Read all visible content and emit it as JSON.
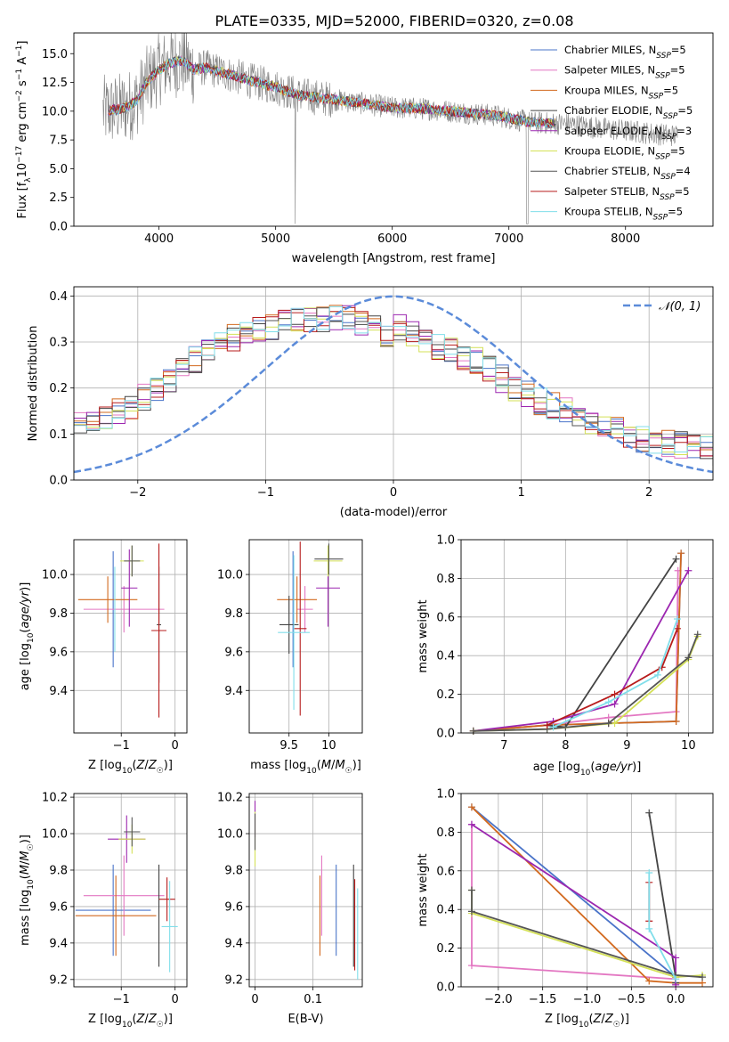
{
  "figure": {
    "title": "PLATE=0335, MJD=52000, FIBERID=0320, z=0.08"
  },
  "chart_data": [
    {
      "id": "spectrum",
      "type": "line",
      "title": "PLATE=0335, MJD=52000, FIBERID=0320, z=0.08",
      "xlabel": "wavelength [Angstrom, rest frame]",
      "ylabel": "Flux [f_λ 10^-17 erg cm^-2 s^-1 A^-1]",
      "xlim": [
        3270,
        8750
      ],
      "ylim": [
        0,
        16.8
      ],
      "xticks": [
        4000,
        5000,
        6000,
        7000,
        8000
      ],
      "yticks": [
        0.0,
        2.5,
        5.0,
        7.5,
        10.0,
        12.5,
        15.0
      ],
      "grid": false,
      "legend_position": "top-right",
      "data_color": "#808080",
      "continuum_x": [
        3550,
        3700,
        3800,
        3900,
        4000,
        4100,
        4200,
        4300,
        4400,
        4600,
        4800,
        5000,
        5200,
        5500,
        5800,
        6000,
        6300,
        6600,
        6900,
        7200,
        7500,
        7800,
        8100,
        8400
      ],
      "continuum_y": [
        10.0,
        10.3,
        10.8,
        12.6,
        13.6,
        14.2,
        14.4,
        13.6,
        13.8,
        13.2,
        12.6,
        12.1,
        11.4,
        11.0,
        10.6,
        10.3,
        10.2,
        9.9,
        9.6,
        9.0,
        8.9,
        8.5,
        8.2,
        7.9
      ],
      "series": [
        {
          "name": "Chabrier MILES, N_SSP=5",
          "color": "#4a74c9"
        },
        {
          "name": "Salpeter MILES, N_SSP=5",
          "color": "#e377c2"
        },
        {
          "name": "Kroupa MILES, N_SSP=5",
          "color": "#d2691e"
        },
        {
          "name": "Chabrier ELODIE, N_SSP=5",
          "color": "#444444"
        },
        {
          "name": "Salpeter ELODIE, N_SSP=3",
          "color": "#9c27b0"
        },
        {
          "name": "Kroupa ELODIE, N_SSP=5",
          "color": "#d4e157"
        },
        {
          "name": "Chabrier STELIB, N_SSP=4",
          "color": "#555555"
        },
        {
          "name": "Salpeter STELIB, N_SSP=5",
          "color": "#b71c1c"
        },
        {
          "name": "Kroupa STELIB, N_SSP=5",
          "color": "#80deea"
        }
      ]
    },
    {
      "id": "residuals",
      "type": "line",
      "xlabel": "(data-model)/error",
      "ylabel": "Normed distribution",
      "xlim": [
        -2.5,
        2.5
      ],
      "ylim": [
        0,
        0.42
      ],
      "xticks": [
        -2,
        -1,
        0,
        1,
        2
      ],
      "yticks": [
        0.0,
        0.1,
        0.2,
        0.3,
        0.4
      ],
      "grid": true,
      "legend_position": "top-right",
      "legend_label": "𝒩(0, 1)",
      "gaussian_color": "#5b8bd9",
      "bin_width": 0.1,
      "hist_base": [
        0.04,
        0.045,
        0.05,
        0.05,
        0.055,
        0.06,
        0.065,
        0.07,
        0.08,
        0.085,
        0.09,
        0.095,
        0.1,
        0.11,
        0.12,
        0.125,
        0.13,
        0.14,
        0.15,
        0.16,
        0.18,
        0.2,
        0.22,
        0.24,
        0.26,
        0.28,
        0.29,
        0.31,
        0.32,
        0.33,
        0.335,
        0.34,
        0.345,
        0.35,
        0.35,
        0.355,
        0.35,
        0.34,
        0.33,
        0.32,
        0.33,
        0.32,
        0.3,
        0.29,
        0.28,
        0.27,
        0.26,
        0.24,
        0.22,
        0.2,
        0.185,
        0.17,
        0.16,
        0.15,
        0.14,
        0.13,
        0.12,
        0.11,
        0.1,
        0.09,
        0.085,
        0.08,
        0.075,
        0.07,
        0.065,
        0.06,
        0.055,
        0.05,
        0.045,
        0.04,
        0.04,
        0.035,
        0.03,
        0.03,
        0.025,
        0.025,
        0.02,
        0.02,
        0.02,
        0.02
      ]
    },
    {
      "id": "age_vs_Z",
      "type": "scatter",
      "xlabel": "Z [log10(Z/Z☉)]",
      "ylabel": "age  [log10(age/yr)]",
      "xlim": [
        -1.88,
        0.22
      ],
      "ylim": [
        9.18,
        10.18
      ],
      "xticks": [
        -1,
        0
      ],
      "xticklabels": [
        "−1",
        "0"
      ],
      "yticks": [
        9.4,
        9.6,
        9.8,
        10.0
      ],
      "grid": true,
      "points": [
        {
          "x": -1.15,
          "y": 9.82,
          "xerr": 0.0,
          "yerr": 0.3,
          "color": "#4a74c9"
        },
        {
          "x": -0.95,
          "y": 9.82,
          "xerr": 0.75,
          "yerr": 0.12,
          "color": "#e377c2"
        },
        {
          "x": -1.25,
          "y": 9.87,
          "xerr": 0.55,
          "yerr": 0.12,
          "color": "#d2691e"
        },
        {
          "x": -0.3,
          "y": 9.74,
          "xerr": 0.04,
          "yerr": 0.3,
          "color": "#444444"
        },
        {
          "x": -0.85,
          "y": 9.93,
          "xerr": 0.15,
          "yerr": 0.2,
          "color": "#9c27b0"
        },
        {
          "x": -0.8,
          "y": 10.07,
          "xerr": 0.22,
          "yerr": 0.08,
          "color": "#d4e157"
        },
        {
          "x": -0.8,
          "y": 10.07,
          "xerr": 0.15,
          "yerr": 0.08,
          "color": "#555555"
        },
        {
          "x": -0.3,
          "y": 9.71,
          "xerr": 0.14,
          "yerr": 0.45,
          "color": "#b71c1c"
        },
        {
          "x": -1.12,
          "y": 9.82,
          "xerr": 0.0,
          "yerr": 0.22,
          "color": "#80deea"
        }
      ]
    },
    {
      "id": "age_vs_mass",
      "type": "scatter",
      "xlabel": "mass [log10(M/M☉)]",
      "ylabel": "",
      "xlim": [
        9.0,
        10.42
      ],
      "ylim": [
        9.18,
        10.18
      ],
      "xticks": [
        9.5,
        10.0
      ],
      "yticks": [
        9.4,
        9.6,
        9.8,
        10.0
      ],
      "grid": true,
      "points": [
        {
          "x": 9.55,
          "y": 9.82,
          "xerr": 0.0,
          "yerr": 0.3,
          "color": "#4a74c9"
        },
        {
          "x": 9.7,
          "y": 9.82,
          "xerr": 0.1,
          "yerr": 0.12,
          "color": "#e377c2"
        },
        {
          "x": 9.6,
          "y": 9.87,
          "xerr": 0.25,
          "yerr": 0.12,
          "color": "#d2691e"
        },
        {
          "x": 9.5,
          "y": 9.74,
          "xerr": 0.12,
          "yerr": 0.15,
          "color": "#444444"
        },
        {
          "x": 9.99,
          "y": 9.93,
          "xerr": 0.15,
          "yerr": 0.2,
          "color": "#9c27b0"
        },
        {
          "x": 9.99,
          "y": 10.07,
          "xerr": 0.18,
          "yerr": 0.08,
          "color": "#d4e157"
        },
        {
          "x": 10.0,
          "y": 10.08,
          "xerr": 0.18,
          "yerr": 0.08,
          "color": "#555555"
        },
        {
          "x": 9.64,
          "y": 9.72,
          "xerr": 0.08,
          "yerr": 0.45,
          "color": "#b71c1c"
        },
        {
          "x": 9.56,
          "y": 9.7,
          "xerr": 0.2,
          "yerr": 0.4,
          "color": "#80deea"
        }
      ]
    },
    {
      "id": "weight_vs_age",
      "type": "line",
      "xlabel": "age  [log10(age/yr)]",
      "ylabel": "mass weight",
      "xlim": [
        6.3,
        10.4
      ],
      "ylim": [
        0,
        1.0
      ],
      "xticks": [
        7,
        8,
        9,
        10
      ],
      "yticks": [
        0.0,
        0.2,
        0.4,
        0.6,
        0.8,
        1.0
      ],
      "grid": true,
      "series": [
        {
          "color": "#4a74c9",
          "x": [
            6.5,
            7.7,
            8.7,
            9.8,
            9.88
          ],
          "y": [
            0.01,
            0.04,
            0.05,
            0.06,
            0.93
          ]
        },
        {
          "color": "#e377c2",
          "x": [
            6.5,
            7.7,
            8.7,
            9.8,
            9.83
          ],
          "y": [
            0.01,
            0.04,
            0.08,
            0.11,
            0.84
          ]
        },
        {
          "color": "#d2691e",
          "x": [
            6.5,
            7.7,
            8.7,
            9.8,
            9.88
          ],
          "y": [
            0.01,
            0.04,
            0.05,
            0.06,
            0.93
          ]
        },
        {
          "color": "#444444",
          "x": [
            7.7,
            8.0,
            9.8
          ],
          "y": [
            0.04,
            0.03,
            0.9
          ]
        },
        {
          "color": "#9c27b0",
          "x": [
            6.5,
            7.8,
            8.8,
            10.0
          ],
          "y": [
            0.01,
            0.06,
            0.15,
            0.84
          ]
        },
        {
          "color": "#d4e157",
          "x": [
            6.5,
            7.7,
            8.8,
            10.0,
            10.15
          ],
          "y": [
            0.01,
            0.02,
            0.05,
            0.38,
            0.5
          ]
        },
        {
          "color": "#555555",
          "x": [
            6.5,
            7.7,
            8.7,
            10.0,
            10.15
          ],
          "y": [
            0.01,
            0.02,
            0.05,
            0.39,
            0.51
          ]
        },
        {
          "color": "#b71c1c",
          "x": [
            7.7,
            8.8,
            9.57,
            9.82
          ],
          "y": [
            0.04,
            0.2,
            0.34,
            0.54
          ]
        },
        {
          "color": "#80deea",
          "x": [
            7.8,
            8.7,
            9.5,
            9.82
          ],
          "y": [
            0.03,
            0.16,
            0.3,
            0.59
          ]
        }
      ]
    },
    {
      "id": "mass_vs_Z",
      "type": "scatter",
      "xlabel": "Z [log10(Z/Z☉)]",
      "ylabel": "mass [log10(M/M☉)]",
      "xlim": [
        -1.88,
        0.22
      ],
      "ylim": [
        9.16,
        10.22
      ],
      "xticks": [
        -1,
        0
      ],
      "xticklabels": [
        "−1",
        "0"
      ],
      "yticks": [
        9.2,
        9.4,
        9.6,
        9.8,
        10.0,
        10.2
      ],
      "grid": true,
      "points": [
        {
          "x": -1.15,
          "y": 9.58,
          "xerr": 0.7,
          "yerr": 0.25,
          "color": "#4a74c9"
        },
        {
          "x": -0.95,
          "y": 9.66,
          "xerr": 0.75,
          "yerr": 0.22,
          "color": "#e377c2"
        },
        {
          "x": -1.1,
          "y": 9.55,
          "xerr": 0.75,
          "yerr": 0.22,
          "color": "#d2691e"
        },
        {
          "x": -0.3,
          "y": 9.55,
          "xerr": 0.0,
          "yerr": 0.28,
          "color": "#444444"
        },
        {
          "x": -0.9,
          "y": 9.97,
          "xerr": 0.35,
          "yerr": 0.13,
          "color": "#9c27b0"
        },
        {
          "x": -0.8,
          "y": 9.97,
          "xerr": 0.25,
          "yerr": 0.08,
          "color": "#d4e157"
        },
        {
          "x": -0.8,
          "y": 10.01,
          "xerr": 0.15,
          "yerr": 0.08,
          "color": "#555555"
        },
        {
          "x": -0.15,
          "y": 9.64,
          "xerr": 0.15,
          "yerr": 0.12,
          "color": "#b71c1c"
        },
        {
          "x": -0.1,
          "y": 9.49,
          "xerr": 0.15,
          "yerr": 0.25,
          "color": "#80deea"
        }
      ]
    },
    {
      "id": "mass_vs_ebv",
      "type": "scatter",
      "xlabel": "E(B-V)",
      "ylabel": "",
      "xlim": [
        -0.01,
        0.185
      ],
      "ylim": [
        9.16,
        10.22
      ],
      "xticks": [
        0.0,
        0.1
      ],
      "yticks": [
        9.2,
        9.4,
        9.6,
        9.8,
        10.0,
        10.2
      ],
      "grid": true,
      "points": [
        {
          "x": 0.14,
          "y": 9.58,
          "xerr": 0,
          "yerr": 0.25,
          "color": "#4a74c9"
        },
        {
          "x": 0.115,
          "y": 9.66,
          "xerr": 0,
          "yerr": 0.22,
          "color": "#e377c2"
        },
        {
          "x": 0.112,
          "y": 9.55,
          "xerr": 0,
          "yerr": 0.22,
          "color": "#d2691e"
        },
        {
          "x": 0.17,
          "y": 9.55,
          "xerr": 0,
          "yerr": 0.28,
          "color": "#444444"
        },
        {
          "x": 0.0,
          "y": 10.08,
          "xerr": 0,
          "yerr": 0.1,
          "color": "#9c27b0"
        },
        {
          "x": 0.0,
          "y": 9.97,
          "xerr": 0,
          "yerr": 0.15,
          "color": "#d4e157"
        },
        {
          "x": 0.0,
          "y": 10.01,
          "xerr": 0,
          "yerr": 0.1,
          "color": "#555555"
        },
        {
          "x": 0.172,
          "y": 9.5,
          "xerr": 0,
          "yerr": 0.25,
          "color": "#b71c1c"
        },
        {
          "x": 0.177,
          "y": 9.45,
          "xerr": 0,
          "yerr": 0.25,
          "color": "#80deea"
        }
      ]
    },
    {
      "id": "weight_vs_Z",
      "type": "line",
      "xlabel": "Z [log10(Z/Z☉)]",
      "ylabel": "mass weight",
      "xlim": [
        -2.42,
        0.42
      ],
      "ylim": [
        0,
        1.0
      ],
      "xticks": [
        -2.0,
        -1.5,
        -1.0,
        -0.5,
        0.0
      ],
      "xticklabels": [
        "−2.0",
        "−1.5",
        "−1.0",
        "−0.5",
        "0.0"
      ],
      "yticks": [
        0.0,
        0.2,
        0.4,
        0.6,
        0.8,
        1.0
      ],
      "grid": true,
      "series": [
        {
          "color": "#4a74c9",
          "x": [
            -2.3,
            0.0,
            0.0
          ],
          "y": [
            0.93,
            0.05,
            0.02
          ]
        },
        {
          "color": "#e377c2",
          "x": [
            -2.3,
            -2.3,
            0.0,
            0.0
          ],
          "y": [
            0.84,
            0.11,
            0.04,
            0.01
          ]
        },
        {
          "color": "#d2691e",
          "x": [
            -2.3,
            -0.3,
            0.0,
            0.3
          ],
          "y": [
            0.93,
            0.03,
            0.02,
            0.02
          ]
        },
        {
          "color": "#444444",
          "x": [
            -0.3,
            0.0,
            0.0
          ],
          "y": [
            0.9,
            0.05,
            0.02
          ]
        },
        {
          "color": "#9c27b0",
          "x": [
            -2.3,
            0.0,
            0.0
          ],
          "y": [
            0.84,
            0.15,
            0.01
          ]
        },
        {
          "color": "#d4e157",
          "x": [
            -2.3,
            -2.3,
            0.0,
            0.3
          ],
          "y": [
            0.5,
            0.38,
            0.05,
            0.06
          ]
        },
        {
          "color": "#555555",
          "x": [
            -2.3,
            -2.3,
            0.0,
            0.3
          ],
          "y": [
            0.5,
            0.39,
            0.06,
            0.05
          ]
        },
        {
          "color": "#b71c1c",
          "x": [
            -0.3,
            -0.3
          ],
          "y": [
            0.54,
            0.34
          ]
        },
        {
          "color": "#80deea",
          "x": [
            -0.3,
            -0.3,
            0.0
          ],
          "y": [
            0.59,
            0.3,
            0.04
          ]
        }
      ]
    }
  ]
}
